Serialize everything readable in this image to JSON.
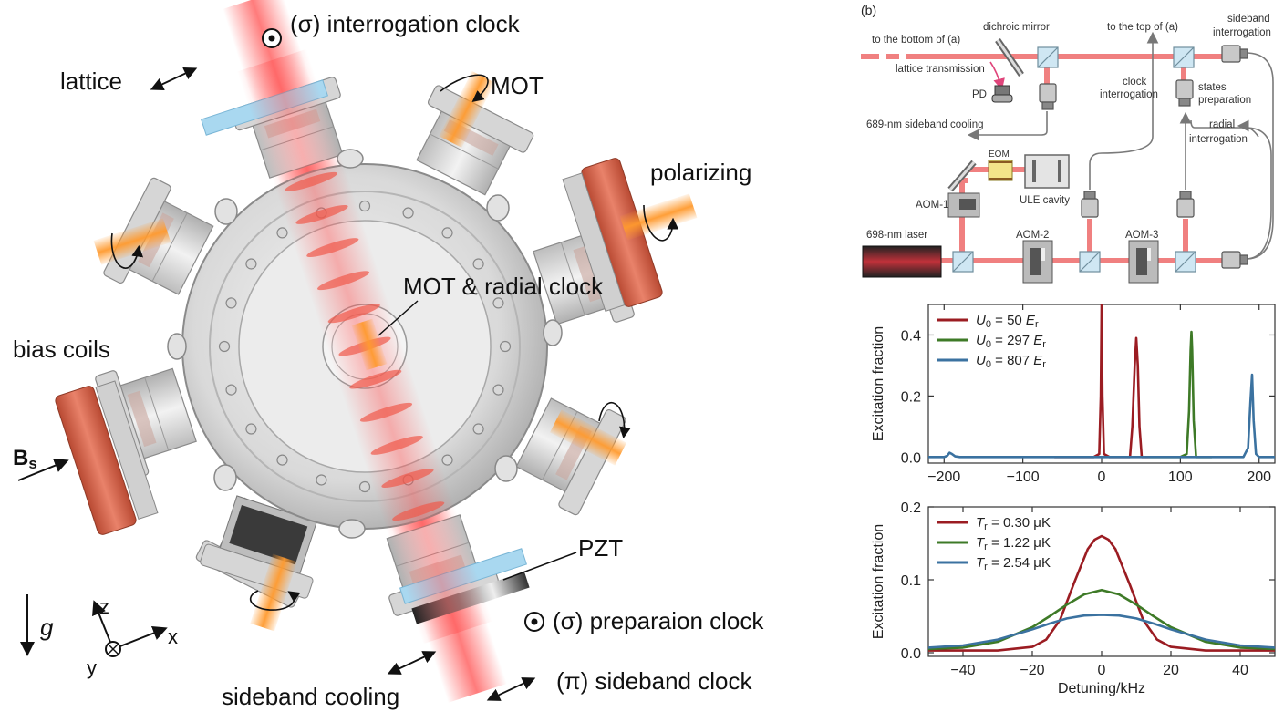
{
  "left_panel": {
    "labels": {
      "interrogation_clock": "(σ) interrogation clock",
      "lattice": "lattice",
      "mot": "MOT",
      "polarizing": "polarizing",
      "mot_radial": "MOT & radial clock",
      "bias_coils": "bias coils",
      "bs": "B",
      "bs_sub": "s",
      "pzt": "PZT",
      "preparation_clock": "(σ) preparaion clock",
      "sideband_cooling": "sideband cooling",
      "pi_sideband_clock": "(π) sideband clock",
      "g": "g",
      "axis_z": "z",
      "axis_x": "x",
      "axis_y": "y"
    }
  },
  "panel_b": {
    "tag": "(b)",
    "labels": {
      "to_bottom": "to the bottom of (a)",
      "dichroic_mirror": "dichroic mirror",
      "to_top": "to the top of (a)",
      "sideband_interrogation_1": "sideband",
      "sideband_interrogation_2": "interrogation",
      "lattice_transmission": "lattice transmission",
      "pd": "PD",
      "clock_interrogation_1": "clock",
      "clock_interrogation_2": "interrogation",
      "states_preparation_1": "states",
      "states_preparation_2": "preparation",
      "sideband_cooling_689": "689-nm sideband cooling",
      "radial_interrogation_1": "radial",
      "radial_interrogation_2": "interrogation",
      "eom": "EOM",
      "ule_cavity": "ULE cavity",
      "aom1": "AOM-1",
      "laser_698": "698-nm laser",
      "aom2": "AOM-2",
      "aom3": "AOM-3"
    }
  },
  "colors": {
    "beam": "#f08080",
    "series_red": "#9b1c22",
    "series_green": "#3e7a27",
    "series_blue": "#3b72a0"
  },
  "chart_data": [
    {
      "type": "line",
      "xlabel": "",
      "ylabel": "Excitation fraction",
      "xlim": [
        -220,
        220
      ],
      "ylim": [
        -0.02,
        0.5
      ],
      "xticks": [
        -200,
        -100,
        0,
        100,
        200
      ],
      "yticks": [
        0.0,
        0.2,
        0.4
      ],
      "xtick_labels": [
        "−200",
        "−100",
        "0",
        "100",
        "200"
      ],
      "ytick_labels": [
        "0.0",
        "0.2",
        "0.4"
      ],
      "legend_position": "top-left",
      "series": [
        {
          "name": "U0 = 50 Er",
          "legend_main": "U",
          "legend_sub": "0",
          "legend_rest": " = 50 ",
          "legend_unit": "E",
          "legend_unit_sub": "r",
          "x": [
            -60,
            -10,
            -3,
            -1,
            0,
            1,
            3,
            10,
            36,
            39,
            42,
            44,
            46,
            48,
            51,
            60
          ],
          "y": [
            0.0,
            0.0,
            0.01,
            0.2,
            0.5,
            0.2,
            0.01,
            0.0,
            0.0,
            0.1,
            0.3,
            0.39,
            0.3,
            0.1,
            0.0,
            0.0
          ]
        },
        {
          "name": "U0 = 297 Er",
          "legend_main": "U",
          "legend_sub": "0",
          "legend_rest": " = 297 ",
          "legend_unit": "E",
          "legend_unit_sub": "r",
          "x": [
            60,
            100,
            108,
            111,
            113,
            114,
            115,
            117,
            120,
            140
          ],
          "y": [
            0.0,
            0.0,
            0.01,
            0.15,
            0.35,
            0.41,
            0.35,
            0.12,
            0.0,
            0.0
          ]
        },
        {
          "name": "U0 = 807 Er",
          "legend_main": "U",
          "legend_sub": "0",
          "legend_rest": " = 807 ",
          "legend_unit": "E",
          "legend_unit_sub": "r",
          "x": [
            -220,
            -200,
            -196,
            -193,
            -190,
            -186,
            -180,
            -150,
            -100,
            -60,
            140,
            180,
            186,
            189,
            191,
            193,
            196,
            200,
            220
          ],
          "y": [
            0.0,
            0.0,
            0.004,
            0.014,
            0.01,
            0.002,
            0.0,
            0.0,
            0.0,
            0.0,
            0.0,
            0.0,
            0.03,
            0.18,
            0.27,
            0.12,
            0.01,
            0.0,
            0.0
          ]
        }
      ]
    },
    {
      "type": "line",
      "xlabel": "Detuning/kHz",
      "ylabel": "Excitation fraction",
      "xlim": [
        -50,
        50
      ],
      "ylim": [
        -0.005,
        0.2
      ],
      "xticks": [
        -40,
        -20,
        0,
        20,
        40
      ],
      "yticks": [
        0.0,
        0.1,
        0.2
      ],
      "xtick_labels": [
        "−40",
        "−20",
        "0",
        "20",
        "40"
      ],
      "ytick_labels": [
        "0.0",
        "0.1",
        "0.2"
      ],
      "legend_position": "top-left",
      "series": [
        {
          "name": "Tr = 0.30 μK",
          "legend_main": "T",
          "legend_sub": "r",
          "legend_rest": " = 0.30 μK",
          "legend_unit": "",
          "legend_unit_sub": "",
          "x": [
            -50,
            -30,
            -20,
            -16,
            -12,
            -8,
            -4,
            -2,
            0,
            2,
            4,
            8,
            12,
            16,
            20,
            30,
            50
          ],
          "y": [
            0.003,
            0.003,
            0.008,
            0.018,
            0.045,
            0.095,
            0.142,
            0.155,
            0.16,
            0.155,
            0.142,
            0.095,
            0.045,
            0.018,
            0.008,
            0.003,
            0.003
          ]
        },
        {
          "name": "Tr = 1.22 μK",
          "legend_main": "T",
          "legend_sub": "r",
          "legend_rest": " = 1.22 μK",
          "legend_unit": "",
          "legend_unit_sub": "",
          "x": [
            -50,
            -40,
            -30,
            -20,
            -15,
            -10,
            -5,
            0,
            5,
            10,
            15,
            20,
            30,
            40,
            50
          ],
          "y": [
            0.005,
            0.007,
            0.015,
            0.035,
            0.05,
            0.066,
            0.08,
            0.086,
            0.08,
            0.066,
            0.05,
            0.035,
            0.015,
            0.007,
            0.005
          ]
        },
        {
          "name": "Tr = 2.54 μK",
          "legend_main": "T",
          "legend_sub": "r",
          "legend_rest": " = 2.54 μK",
          "legend_unit": "",
          "legend_unit_sub": "",
          "x": [
            -50,
            -40,
            -30,
            -20,
            -15,
            -10,
            -5,
            0,
            5,
            10,
            15,
            20,
            30,
            40,
            50
          ],
          "y": [
            0.007,
            0.01,
            0.018,
            0.032,
            0.04,
            0.047,
            0.051,
            0.052,
            0.051,
            0.047,
            0.04,
            0.032,
            0.018,
            0.01,
            0.007
          ]
        }
      ]
    }
  ]
}
